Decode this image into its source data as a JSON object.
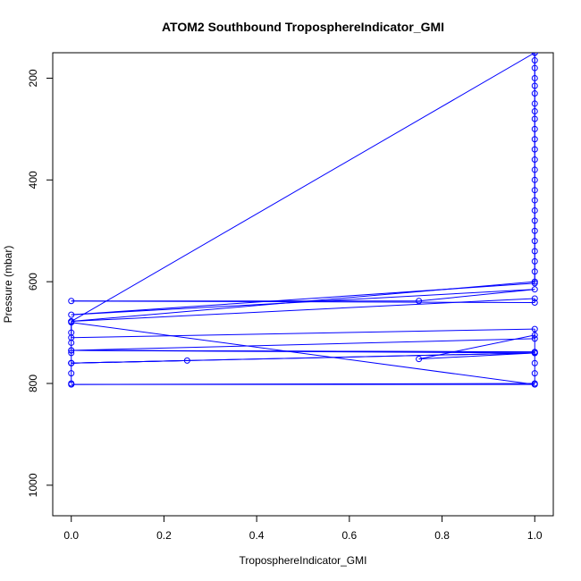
{
  "chart_data": {
    "type": "scatter",
    "title": "ATOM2 Southbound TroposphereIndicator_GMI",
    "xlabel": "TroposphereIndicator_GMI",
    "ylabel": "Pressure (mbar)",
    "xlim": [
      -0.04,
      1.04
    ],
    "ylim": [
      1060,
      150
    ],
    "y_reversed": true,
    "x_ticks": [
      0.0,
      0.2,
      0.4,
      0.6,
      0.8,
      1.0
    ],
    "x_tick_labels": [
      "0.0",
      "0.2",
      "0.4",
      "0.6",
      "0.8",
      "1.0"
    ],
    "y_ticks": [
      200,
      400,
      600,
      800,
      1000
    ],
    "y_tick_labels": [
      "200",
      "400",
      "600",
      "800",
      "1000"
    ],
    "grid": false,
    "line_color": "#0000ff",
    "marker_color": "#0000ff",
    "series": [
      {
        "values": [
          [
            1.0,
            150
          ],
          [
            1.0,
            165
          ],
          [
            1.0,
            180
          ],
          [
            1.0,
            200
          ],
          [
            1.0,
            215
          ],
          [
            1.0,
            230
          ],
          [
            1.0,
            250
          ],
          [
            1.0,
            265
          ],
          [
            1.0,
            280
          ],
          [
            1.0,
            300
          ],
          [
            1.0,
            320
          ],
          [
            1.0,
            340
          ],
          [
            1.0,
            360
          ],
          [
            1.0,
            380
          ],
          [
            1.0,
            400
          ],
          [
            1.0,
            420
          ],
          [
            1.0,
            440
          ],
          [
            1.0,
            460
          ],
          [
            1.0,
            480
          ],
          [
            1.0,
            500
          ],
          [
            1.0,
            520
          ],
          [
            1.0,
            540
          ],
          [
            1.0,
            560
          ],
          [
            1.0,
            580
          ],
          [
            1.0,
            600
          ],
          [
            0.0,
            678
          ],
          [
            1.0,
            150
          ],
          [
            1.0,
            603
          ],
          [
            0.0,
            665
          ],
          [
            1.0,
            615
          ],
          [
            0.75,
            638
          ],
          [
            0.0,
            638
          ],
          [
            1.0,
            641
          ],
          [
            1.0,
            633
          ],
          [
            0.0,
            678
          ],
          [
            0.0,
            710
          ],
          [
            1.0,
            693
          ],
          [
            1.0,
            712
          ],
          [
            0.0,
            735
          ],
          [
            1.0,
            738
          ],
          [
            0.0,
            735
          ],
          [
            1.0,
            740
          ],
          [
            0.0,
            760
          ],
          [
            0.25,
            755
          ],
          [
            0.0,
            760
          ],
          [
            1.0,
            740
          ],
          [
            0.75,
            752
          ],
          [
            1.0,
            705
          ],
          [
            1.0,
            740
          ],
          [
            1.0,
            760
          ],
          [
            1.0,
            780
          ],
          [
            1.0,
            800
          ],
          [
            0.0,
            802
          ],
          [
            1.0,
            802
          ],
          [
            0.0,
            680
          ],
          [
            0.0,
            700
          ],
          [
            0.0,
            720
          ],
          [
            0.0,
            740
          ],
          [
            0.0,
            760
          ],
          [
            0.0,
            780
          ],
          [
            0.0,
            800
          ]
        ]
      }
    ]
  }
}
